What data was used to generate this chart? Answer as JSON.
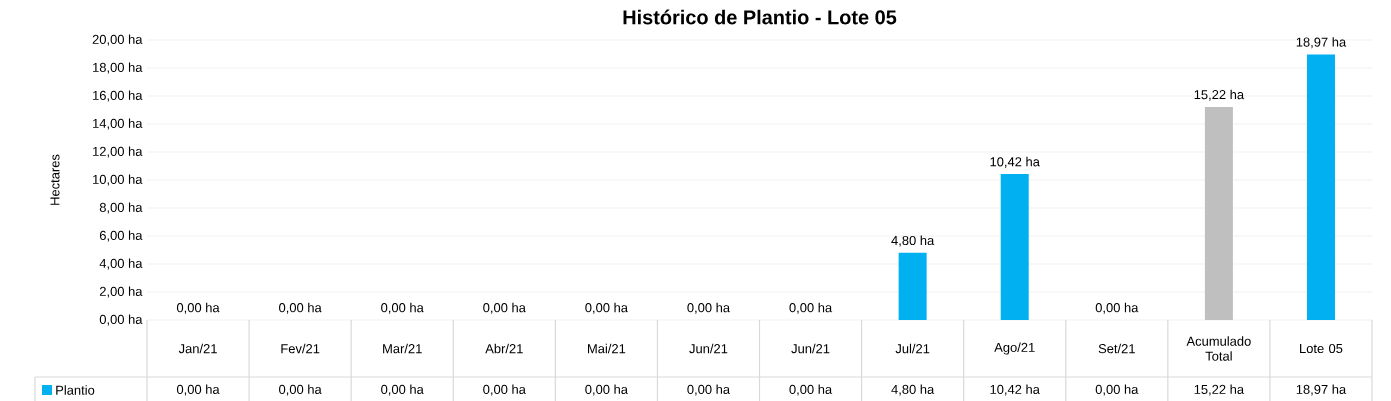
{
  "chart_data": {
    "type": "bar",
    "title": "Histórico de Plantio - Lote 05",
    "ylabel": "Hectares",
    "categories": [
      "Jan/21",
      "Fev/21",
      "Mar/21",
      "Abr/21",
      "Mai/21",
      "Jun/21",
      "Jun/21",
      "Jul/21",
      "Ago/21",
      "Set/21",
      "Acumulado Total",
      "Lote 05"
    ],
    "series": [
      {
        "name": "Plantio",
        "color": "#00b0f0",
        "values": [
          0,
          0,
          0,
          0,
          0,
          0,
          0,
          4.8,
          10.42,
          0,
          15.22,
          18.97
        ],
        "value_labels": [
          "0,00 ha",
          "0,00 ha",
          "0,00 ha",
          "0,00 ha",
          "0,00 ha",
          "0,00 ha",
          "0,00 ha",
          "4,80 ha",
          "10,42 ha",
          "0,00 ha",
          "15,22 ha",
          "18,97 ha"
        ],
        "colors": [
          "#00b0f0",
          "#00b0f0",
          "#00b0f0",
          "#00b0f0",
          "#00b0f0",
          "#00b0f0",
          "#00b0f0",
          "#00b0f0",
          "#00b0f0",
          "#00b0f0",
          "#bfbfbf",
          "#00b0f0"
        ]
      }
    ],
    "ylim": [
      0,
      20
    ],
    "yticks": [
      {
        "value": 0,
        "label": "0,00 ha"
      },
      {
        "value": 2,
        "label": "2,00 ha"
      },
      {
        "value": 4,
        "label": "4,00 ha"
      },
      {
        "value": 6,
        "label": "6,00 ha"
      },
      {
        "value": 8,
        "label": "8,00 ha"
      },
      {
        "value": 10,
        "label": "10,00 ha"
      },
      {
        "value": 12,
        "label": "12,00 ha"
      },
      {
        "value": 14,
        "label": "14,00 ha"
      },
      {
        "value": 16,
        "label": "16,00 ha"
      },
      {
        "value": 18,
        "label": "18,00 ha"
      },
      {
        "value": 20,
        "label": "20,00 ha"
      }
    ],
    "grid": "y",
    "legend": "bottom"
  }
}
